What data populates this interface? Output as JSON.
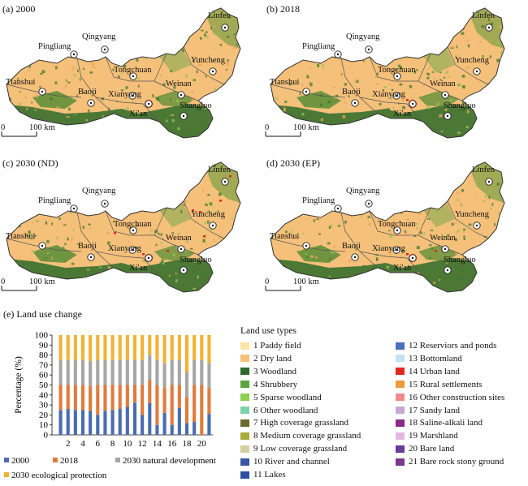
{
  "panels": [
    {
      "label": "(a) 2000"
    },
    {
      "label": "(b) 2018"
    },
    {
      "label": "(c) 2030 (ND)"
    },
    {
      "label": "(d) 2030 (EP)"
    }
  ],
  "cities": [
    "Linfen",
    "Pingliang",
    "Qingyang",
    "Yuncheng",
    "Tongchuan",
    "Tianshui",
    "Baoji",
    "Xianyang",
    "Weinan",
    "Shangluo",
    "Xi'an"
  ],
  "scale_bar": {
    "zero": "0",
    "label": "100 km"
  },
  "section_e": {
    "title": "(e) Land use change"
  },
  "land_use_legend": {
    "title": "Land use types",
    "items": [
      {
        "label": "1 Paddy field",
        "color": "#fde3a7"
      },
      {
        "label": "2 Dry land",
        "color": "#f5c07a"
      },
      {
        "label": "3 Woodland",
        "color": "#2e6b2a"
      },
      {
        "label": "4 Shrubbery",
        "color": "#5aa63a"
      },
      {
        "label": "5 Sparse woodland",
        "color": "#8fce4e"
      },
      {
        "label": "6 Other woodland",
        "color": "#7fd1a8"
      },
      {
        "label": "7 High coverage grassland",
        "color": "#6a6a2a"
      },
      {
        "label": "8 Medium coverage grassland",
        "color": "#a7a93a"
      },
      {
        "label": "9 Low coverage grassland",
        "color": "#d6cfa0"
      },
      {
        "label": "10 River and channel",
        "color": "#3a56a6"
      },
      {
        "label": "11 Lakes",
        "color": "#2d4fa0"
      },
      {
        "label": "12 Reserviors and ponds",
        "color": "#4a6ec0"
      },
      {
        "label": "13 Bottomland",
        "color": "#bfe3f2"
      },
      {
        "label": "14 Urban land",
        "color": "#e0281e"
      },
      {
        "label": "15 Rural settlements",
        "color": "#ee9a3a"
      },
      {
        "label": "16 Other construction sites",
        "color": "#f08a8a"
      },
      {
        "label": "17 Sandy land",
        "color": "#c7a6d8"
      },
      {
        "label": "18 Saline-alkali land",
        "color": "#8a2a8a"
      },
      {
        "label": "19 Marshland",
        "color": "#e2b8e0"
      },
      {
        "label": "20 Bare land",
        "color": "#6a3a9a"
      },
      {
        "label": "21 Bare rock stony ground",
        "color": "#7a3a8a"
      }
    ]
  },
  "chart_data": {
    "type": "bar",
    "stacked": true,
    "ylabel": "Percentage (%)",
    "ylim": [
      0,
      100
    ],
    "yticks": [
      0,
      10,
      20,
      30,
      40,
      50,
      60,
      70,
      80,
      90,
      100
    ],
    "categories": [
      "1",
      "2",
      "3",
      "4",
      "5",
      "6",
      "7",
      "8",
      "9",
      "10",
      "11",
      "12",
      "13",
      "14",
      "15",
      "16",
      "17",
      "18",
      "19",
      "20",
      "21"
    ],
    "xtick_labels": [
      "2",
      "4",
      "6",
      "8",
      "10",
      "12",
      "14",
      "16",
      "18",
      "20"
    ],
    "series": [
      {
        "name": "2000",
        "color": "#4a6cb3",
        "values": [
          25,
          26,
          25,
          25,
          24,
          20,
          24,
          25,
          26,
          28,
          32,
          20,
          32,
          10,
          22,
          10,
          27,
          12,
          13,
          0,
          21
        ]
      },
      {
        "name": "2018",
        "color": "#e07b3e",
        "values": [
          25,
          24,
          25,
          25,
          25,
          30,
          26,
          25,
          24,
          22,
          18,
          30,
          23,
          40,
          25,
          40,
          23,
          26,
          37,
          50,
          26
        ]
      },
      {
        "name": "2030 natural development",
        "color": "#a6a6a6",
        "values": [
          25,
          25,
          25,
          25,
          25,
          25,
          25,
          25,
          25,
          25,
          25,
          25,
          25,
          25,
          25,
          25,
          25,
          25,
          25,
          25,
          25
        ]
      },
      {
        "name": "2030 ecological protection",
        "color": "#f2b233",
        "values": [
          25,
          25,
          25,
          25,
          26,
          25,
          25,
          25,
          25,
          25,
          25,
          25,
          20,
          25,
          28,
          25,
          25,
          37,
          25,
          25,
          28
        ]
      }
    ],
    "legend": "bottom"
  },
  "colors": {
    "dry_land": "#f5c07a",
    "woodland": "#2e6b2a",
    "urban": "#e0281e",
    "boundary": "#555555"
  }
}
